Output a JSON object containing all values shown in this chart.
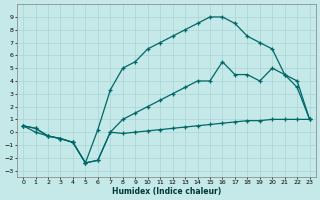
{
  "xlabel": "Humidex (Indice chaleur)",
  "background_color": "#c5e8e8",
  "grid_color": "#aad4d4",
  "line_color": "#006868",
  "xlim": [
    -0.5,
    23.5
  ],
  "ylim": [
    -3.5,
    10
  ],
  "xticks": [
    0,
    1,
    2,
    3,
    4,
    5,
    6,
    7,
    8,
    9,
    10,
    11,
    12,
    13,
    14,
    15,
    16,
    17,
    18,
    19,
    20,
    21,
    22,
    23
  ],
  "yticks": [
    -3,
    -2,
    -1,
    0,
    1,
    2,
    3,
    4,
    5,
    6,
    7,
    8,
    9
  ],
  "line1_x": [
    0,
    1,
    2,
    3,
    4,
    5,
    6,
    7,
    8,
    9,
    10,
    11,
    12,
    13,
    14,
    15,
    16,
    17,
    18,
    19,
    20,
    21,
    22,
    23
  ],
  "line1_y": [
    0.5,
    0.0,
    -0.3,
    -0.5,
    -0.8,
    -2.4,
    -2.2,
    0.0,
    -0.1,
    0.0,
    0.1,
    0.2,
    0.3,
    0.4,
    0.5,
    0.6,
    0.7,
    0.8,
    0.9,
    0.9,
    1.0,
    1.0,
    1.0,
    1.0
  ],
  "line2_x": [
    0,
    1,
    2,
    3,
    4,
    5,
    6,
    7,
    8,
    9,
    10,
    11,
    12,
    13,
    14,
    15,
    16,
    17,
    18,
    19,
    20,
    21,
    22,
    23
  ],
  "line2_y": [
    0.5,
    0.3,
    -0.3,
    -0.5,
    -0.8,
    -2.4,
    0.2,
    3.3,
    5.0,
    5.5,
    6.5,
    7.0,
    7.5,
    8.0,
    8.5,
    9.0,
    9.0,
    8.5,
    7.5,
    7.0,
    6.5,
    4.5,
    3.5,
    1.0
  ],
  "line3_x": [
    0,
    1,
    2,
    3,
    4,
    5,
    6,
    7,
    8,
    9,
    10,
    11,
    12,
    13,
    14,
    15,
    16,
    17,
    18,
    19,
    20,
    21,
    22,
    23
  ],
  "line3_y": [
    0.5,
    0.3,
    -0.3,
    -0.5,
    -0.8,
    -2.4,
    -2.2,
    0.0,
    1.0,
    1.5,
    2.0,
    2.5,
    3.0,
    3.5,
    4.0,
    4.0,
    5.5,
    4.5,
    4.5,
    4.0,
    5.0,
    4.5,
    4.0,
    1.0
  ]
}
